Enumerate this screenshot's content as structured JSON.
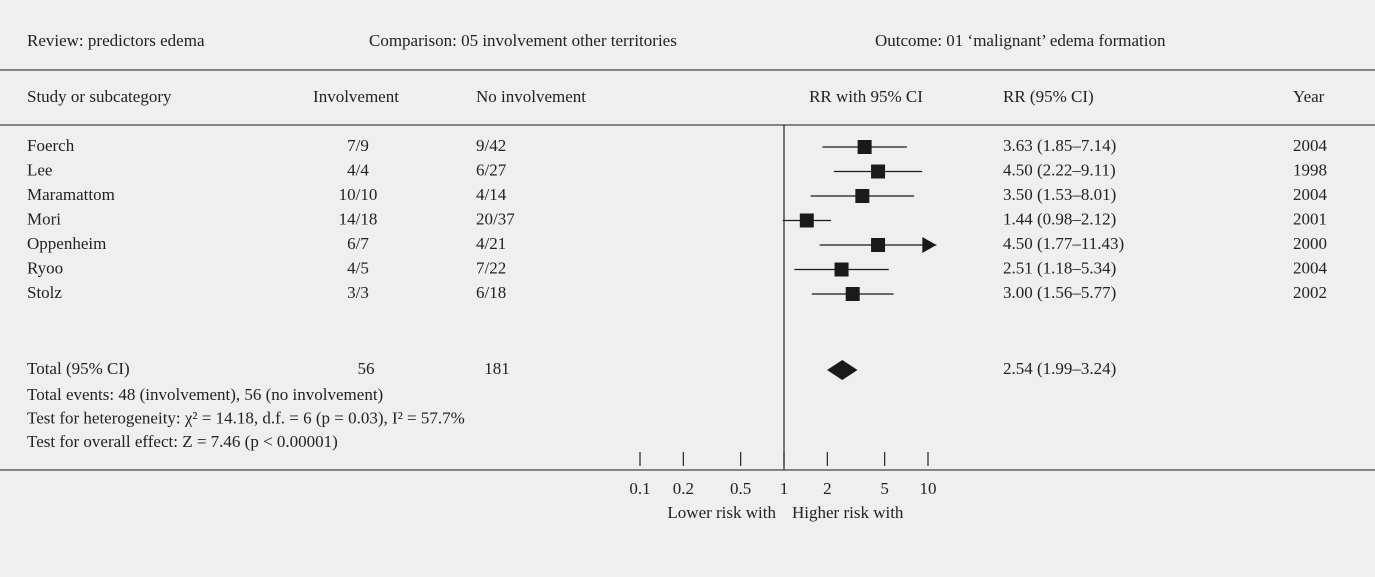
{
  "header": {
    "review": "Review:  predictors edema",
    "comparison": "Comparison:  05 involvement other territories",
    "outcome": "Outcome:  01 ‘malignant’ edema formation"
  },
  "columns": {
    "study": "Study or subcategory",
    "involvement": "Involvement",
    "no_involvement": "No involvement",
    "plot": "RR with 95% CI",
    "rr": "RR (95% CI)",
    "year": "Year"
  },
  "chart_data": {
    "type": "forest",
    "log_scale": true,
    "xlim": [
      0.1,
      10
    ],
    "xticks": [
      0.1,
      0.2,
      0.5,
      1,
      2,
      5,
      10
    ],
    "x_label_left": "Lower risk with",
    "x_label_right": "Higher risk with",
    "color": "#1a1a1a",
    "studies": [
      {
        "name": "Foerch",
        "involvement": "7/9",
        "no_involvement": "9/42",
        "rr": 3.63,
        "lower": 1.85,
        "upper": 7.14,
        "rr_label": "3.63 (1.85–7.14)",
        "year": "2004"
      },
      {
        "name": "Lee",
        "involvement": "4/4",
        "no_involvement": "6/27",
        "rr": 4.5,
        "lower": 2.22,
        "upper": 9.11,
        "rr_label": "4.50 (2.22–9.11)",
        "year": "1998"
      },
      {
        "name": "Maramattom",
        "involvement": "10/10",
        "no_involvement": "4/14",
        "rr": 3.5,
        "lower": 1.53,
        "upper": 8.01,
        "rr_label": "3.50 (1.53–8.01)",
        "year": "2004"
      },
      {
        "name": "Mori",
        "involvement": "14/18",
        "no_involvement": "20/37",
        "rr": 1.44,
        "lower": 0.98,
        "upper": 2.12,
        "rr_label": "1.44 (0.98–2.12)",
        "year": "2001"
      },
      {
        "name": "Oppenheim",
        "involvement": "6/7",
        "no_involvement": "4/21",
        "rr": 4.5,
        "lower": 1.77,
        "upper": 11.43,
        "rr_label": "4.50 (1.77–11.43)",
        "year": "2000"
      },
      {
        "name": "Ryoo",
        "involvement": "4/5",
        "no_involvement": "7/22",
        "rr": 2.51,
        "lower": 1.18,
        "upper": 5.34,
        "rr_label": "2.51 (1.18–5.34)",
        "year": "2004"
      },
      {
        "name": "Stolz",
        "involvement": "3/3",
        "no_involvement": "6/18",
        "rr": 3.0,
        "lower": 1.56,
        "upper": 5.77,
        "rr_label": "3.00 (1.56–5.77)",
        "year": "2002"
      }
    ],
    "total": {
      "name": "Total (95% CI)",
      "involvement": "56",
      "no_involvement": "181",
      "rr": 2.54,
      "lower": 1.99,
      "upper": 3.24,
      "rr_label": "2.54 (1.99–3.24)"
    },
    "notes": [
      "Total events: 48 (involvement), 56 (no involvement)",
      "Test for heterogeneity: χ² = 14.18, d.f. = 6 (p = 0.03), I² = 57.7%",
      "Test for overall effect: Z = 7.46 (p < 0.00001)"
    ]
  }
}
